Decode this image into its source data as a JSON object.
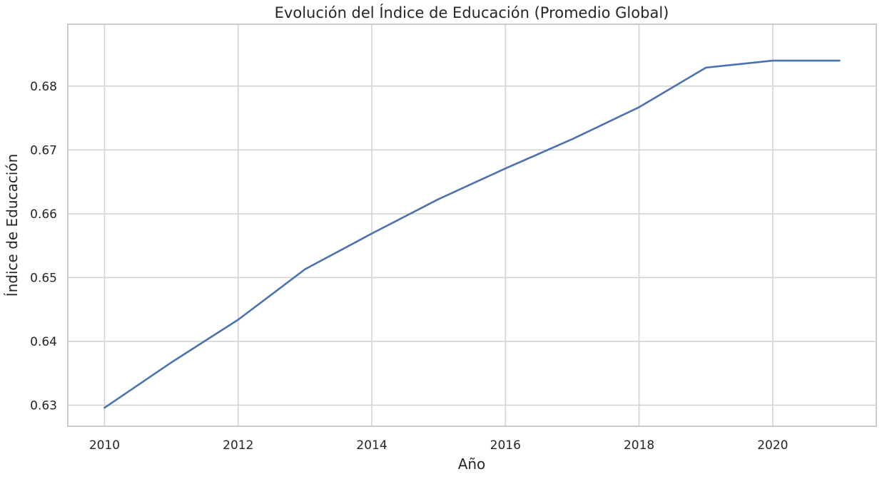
{
  "chart_data": {
    "type": "line",
    "title": "Evolución del Índice de Educación (Promedio Global)",
    "xlabel": "Año",
    "ylabel": "Índice de Educación",
    "x": [
      2010,
      2011,
      2012,
      2013,
      2014,
      2015,
      2016,
      2017,
      2018,
      2019,
      2020,
      2021
    ],
    "series": [
      {
        "values": [
          0.6296,
          0.6367,
          0.6434,
          0.6513,
          0.6569,
          0.6623,
          0.6671,
          0.6717,
          0.6767,
          0.6829,
          0.684,
          0.684
        ],
        "color": "#4c72b0"
      }
    ],
    "xlim": [
      2009.45,
      2021.55
    ],
    "ylim": [
      0.6267,
      0.6897
    ],
    "xticks": [
      2010,
      2012,
      2014,
      2016,
      2018,
      2020
    ],
    "xtick_labels": [
      "2010",
      "2012",
      "2014",
      "2016",
      "2018",
      "2020"
    ],
    "yticks": [
      0.63,
      0.64,
      0.65,
      0.66,
      0.67,
      0.68
    ],
    "ytick_labels": [
      "0.63",
      "0.64",
      "0.65",
      "0.66",
      "0.67",
      "0.68"
    ],
    "grid": true,
    "legend": "none"
  }
}
